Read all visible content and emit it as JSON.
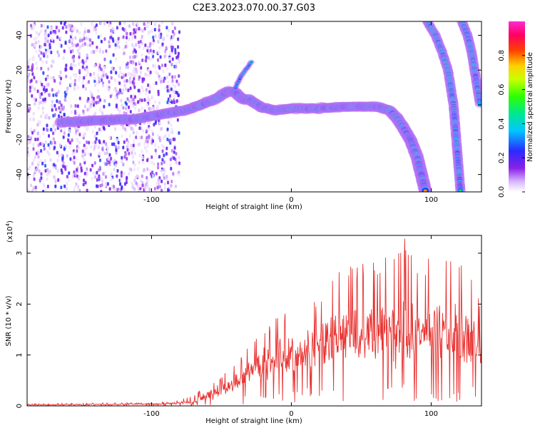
{
  "title": "C2E3.2023.070.00.37.G03",
  "colors": {
    "snr_line": "#e8312f",
    "background": "#ffffff",
    "axes": "#000000"
  },
  "chart_data": [
    {
      "type": "heatmap",
      "name": "spectrogram",
      "xlabel": "Height of straight line (km)",
      "ylabel": "Frequency (Hz)",
      "xlim": [
        -189,
        136
      ],
      "ylim": [
        -50,
        48
      ],
      "x_ticks": [
        -100,
        0,
        100
      ],
      "y_ticks": [
        -40,
        -20,
        0,
        20,
        40
      ],
      "colorbar": {
        "label": "Normalized spectral amplitude",
        "range": [
          0,
          1
        ],
        "ticks": [
          0.0,
          0.2,
          0.4,
          0.6,
          0.8
        ],
        "colormap": "rainbow (white-violet-blue-cyan-green-yellow-red-magenta)"
      },
      "features": [
        {
          "name": "main track",
          "points": [
            [
              -165,
              -10
            ],
            [
              -140,
              -9
            ],
            [
              -110,
              -8
            ],
            [
              -90,
              -5
            ],
            [
              -75,
              -3
            ],
            [
              -65,
              0
            ],
            [
              -55,
              3
            ],
            [
              -45,
              8
            ],
            [
              -40,
              7
            ],
            [
              -35,
              3
            ],
            [
              -30,
              3
            ],
            [
              -20,
              -2
            ],
            [
              -10,
              -3
            ],
            [
              0,
              -2
            ],
            [
              20,
              -2
            ],
            [
              40,
              -1
            ],
            [
              60,
              -1
            ],
            [
              70,
              -3
            ],
            [
              75,
              -7
            ],
            [
              80,
              -13
            ],
            [
              85,
              -20
            ],
            [
              90,
              -30
            ],
            [
              93,
              -40
            ],
            [
              96,
              -50
            ]
          ]
        },
        {
          "name": "spur",
          "points": [
            [
              -40,
              10
            ],
            [
              -35,
              18
            ],
            [
              -28,
              25
            ]
          ]
        },
        {
          "name": "steep trace 1",
          "points": [
            [
              97,
              48
            ],
            [
              103,
              40
            ],
            [
              108,
              30
            ],
            [
              112,
              20
            ],
            [
              114,
              10
            ],
            [
              116,
              0
            ],
            [
              117,
              -10
            ],
            [
              118,
              -20
            ],
            [
              119,
              -30
            ],
            [
              120,
              -40
            ],
            [
              121,
              -50
            ]
          ]
        },
        {
          "name": "steep trace 2",
          "points": [
            [
              122,
              48
            ],
            [
              126,
              40
            ],
            [
              129,
              30
            ],
            [
              131,
              20
            ],
            [
              133,
              10
            ],
            [
              135,
              0
            ]
          ]
        },
        {
          "name": "scattered noise",
          "x_range": [
            -189,
            -80
          ],
          "y_range": [
            -50,
            48
          ]
        }
      ]
    },
    {
      "type": "line",
      "name": "snr",
      "xlabel": "Height of straight line (km)",
      "ylabel": "SNR (10 * v/v)",
      "y_multiplier": "(x10⁴)",
      "xlim": [
        -189,
        136
      ],
      "ylim": [
        0,
        3.35
      ],
      "x_ticks": [
        -100,
        0,
        100
      ],
      "y_ticks": [
        0,
        1,
        2,
        3
      ],
      "series": [
        {
          "x": [
            -189,
            -170,
            -150,
            -130,
            -110,
            -90,
            -80,
            -70,
            -60,
            -50,
            -40,
            -30,
            -20,
            -10,
            0,
            10,
            20,
            30,
            40,
            50,
            60,
            70,
            80,
            90,
            100,
            110,
            120,
            130,
            136
          ],
          "y": [
            0.02,
            0.02,
            0.03,
            0.03,
            0.04,
            0.04,
            0.05,
            0.07,
            0.15,
            0.3,
            0.45,
            0.65,
            0.8,
            0.95,
            1.05,
            1.2,
            1.3,
            1.4,
            1.45,
            1.4,
            1.3,
            1.25,
            1.3,
            1.25,
            1.2,
            1.3,
            1.25,
            1.2,
            1.1
          ],
          "envelope_max": [
            0.04,
            0.05,
            0.05,
            0.06,
            0.06,
            0.08,
            0.12,
            0.2,
            0.45,
            0.6,
            0.85,
            1.2,
            1.6,
            1.75,
            1.95,
            2.05,
            2.2,
            2.6,
            2.75,
            2.85,
            2.85,
            3.0,
            3.35,
            2.9,
            2.95,
            2.95,
            2.9,
            2.55,
            2.0
          ]
        }
      ]
    }
  ],
  "spectrogram": {
    "ylabel": "Frequency (Hz)",
    "xlabel": "Height of straight line (km)",
    "y_tick_labels": [
      "-40",
      "-20",
      "0",
      "20",
      "40"
    ],
    "x_tick_labels": [
      "-100",
      "0",
      "100"
    ]
  },
  "colorbar": {
    "label": "Normalized spectral amplitude",
    "tick_labels": [
      "0.0",
      "0.2",
      "0.4",
      "0.6",
      "0.8"
    ]
  },
  "snr": {
    "ylabel": "SNR (10 * v/v)",
    "multiplier_base": "(x10",
    "multiplier_exp": "4",
    "multiplier_close": ")",
    "xlabel": "Height of straight line (km)",
    "y_tick_labels": [
      "0",
      "1",
      "2",
      "3"
    ],
    "x_tick_labels": [
      "-100",
      "0",
      "100"
    ]
  }
}
